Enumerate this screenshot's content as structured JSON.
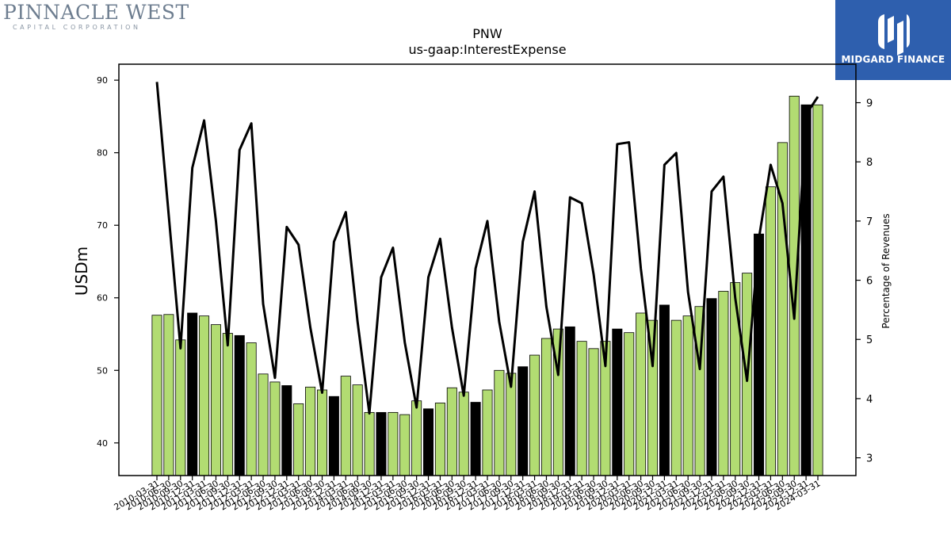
{
  "branding": {
    "left_name": "PINNACLE WEST",
    "left_sub": "CAPITAL CORPORATION",
    "right_name": "MIDGARD FINANCE",
    "right_bg": "#2e5fae"
  },
  "chart_data": {
    "type": "bar",
    "title": "PNW",
    "subtitle": "us-gaap:InterestExpense",
    "ylabel": "USDm",
    "y2label": "Percentage of Revenues",
    "ylim": [
      35.5,
      92.2
    ],
    "y2lim": [
      2.7,
      9.65
    ],
    "yticks": [
      40,
      50,
      60,
      70,
      80,
      90
    ],
    "y2ticks": [
      3,
      4,
      5,
      6,
      7,
      8,
      9
    ],
    "colors": {
      "bar": "#b2dc72",
      "bar_highlight": "#000000",
      "line": "#000000"
    },
    "categories": [
      "2010-03-31",
      "2010-06-30",
      "2010-09-30",
      "2010-12-31",
      "2011-03-31",
      "2011-06-30",
      "2011-09-30",
      "2011-12-31",
      "2012-03-31",
      "2012-06-30",
      "2012-09-30",
      "2012-12-31",
      "2013-03-31",
      "2013-06-30",
      "2013-09-30",
      "2013-12-31",
      "2014-03-31",
      "2014-06-30",
      "2014-09-30",
      "2014-12-31",
      "2015-03-31",
      "2015-06-30",
      "2015-09-30",
      "2015-12-31",
      "2016-03-31",
      "2016-06-30",
      "2016-09-30",
      "2016-12-31",
      "2017-03-31",
      "2017-06-30",
      "2017-09-30",
      "2017-12-31",
      "2018-03-31",
      "2018-06-30",
      "2018-09-30",
      "2018-12-31",
      "2019-03-31",
      "2019-06-30",
      "2019-09-30",
      "2019-12-31",
      "2020-03-31",
      "2020-06-30",
      "2020-09-30",
      "2020-12-31",
      "2021-03-31",
      "2021-06-30",
      "2021-09-30",
      "2021-12-31",
      "2022-03-31",
      "2022-06-30",
      "2022-09-30",
      "2022-12-31",
      "2023-03-31",
      "2023-06-30",
      "2023-09-30",
      "2023-12-31",
      "2024-03-31"
    ],
    "series": [
      {
        "type": "bar",
        "values": [
          57.6,
          57.7,
          54.2,
          57.9,
          57.5,
          56.3,
          55.1,
          54.8,
          53.8,
          49.5,
          48.4,
          47.9,
          45.4,
          47.7,
          47.3,
          46.4,
          49.2,
          48.0,
          44.2,
          44.2,
          44.2,
          43.9,
          45.8,
          44.7,
          45.5,
          47.6,
          47.0,
          45.6,
          47.3,
          50.0,
          49.6,
          50.5,
          52.1,
          54.4,
          55.7,
          56.0,
          54.0,
          53.0,
          54.0,
          55.7,
          55.2,
          57.9,
          56.9,
          59.0,
          56.9,
          57.5,
          58.8,
          59.9,
          60.9,
          62.1,
          63.4,
          68.8,
          75.3,
          81.4,
          87.8,
          86.6,
          86.6
        ],
        "highlight": [
          false,
          false,
          false,
          true,
          false,
          false,
          false,
          true,
          false,
          false,
          false,
          true,
          false,
          false,
          false,
          true,
          false,
          false,
          false,
          true,
          false,
          false,
          false,
          true,
          false,
          false,
          false,
          true,
          false,
          false,
          false,
          true,
          false,
          false,
          false,
          true,
          false,
          false,
          false,
          true,
          false,
          false,
          false,
          true,
          false,
          false,
          false,
          true,
          false,
          false,
          false,
          true,
          false,
          false,
          false,
          true,
          false
        ]
      },
      {
        "type": "line",
        "axis": "right",
        "values": [
          9.35,
          7.1,
          4.85,
          7.9,
          8.7,
          7.0,
          4.9,
          8.2,
          8.65,
          5.6,
          4.35,
          6.9,
          6.6,
          5.2,
          4.1,
          6.65,
          7.15,
          5.3,
          3.75,
          6.05,
          6.55,
          4.95,
          3.85,
          6.05,
          6.7,
          5.2,
          4.05,
          6.2,
          7.0,
          5.3,
          4.2,
          6.65,
          7.5,
          5.55,
          4.4,
          7.4,
          7.3,
          6.1,
          4.55,
          8.3,
          8.33,
          6.2,
          4.55,
          7.95,
          8.15,
          5.8,
          4.5,
          7.5,
          7.75,
          5.7,
          4.3,
          6.7,
          7.95,
          7.3,
          5.35,
          8.8,
          9.1
        ]
      }
    ]
  }
}
